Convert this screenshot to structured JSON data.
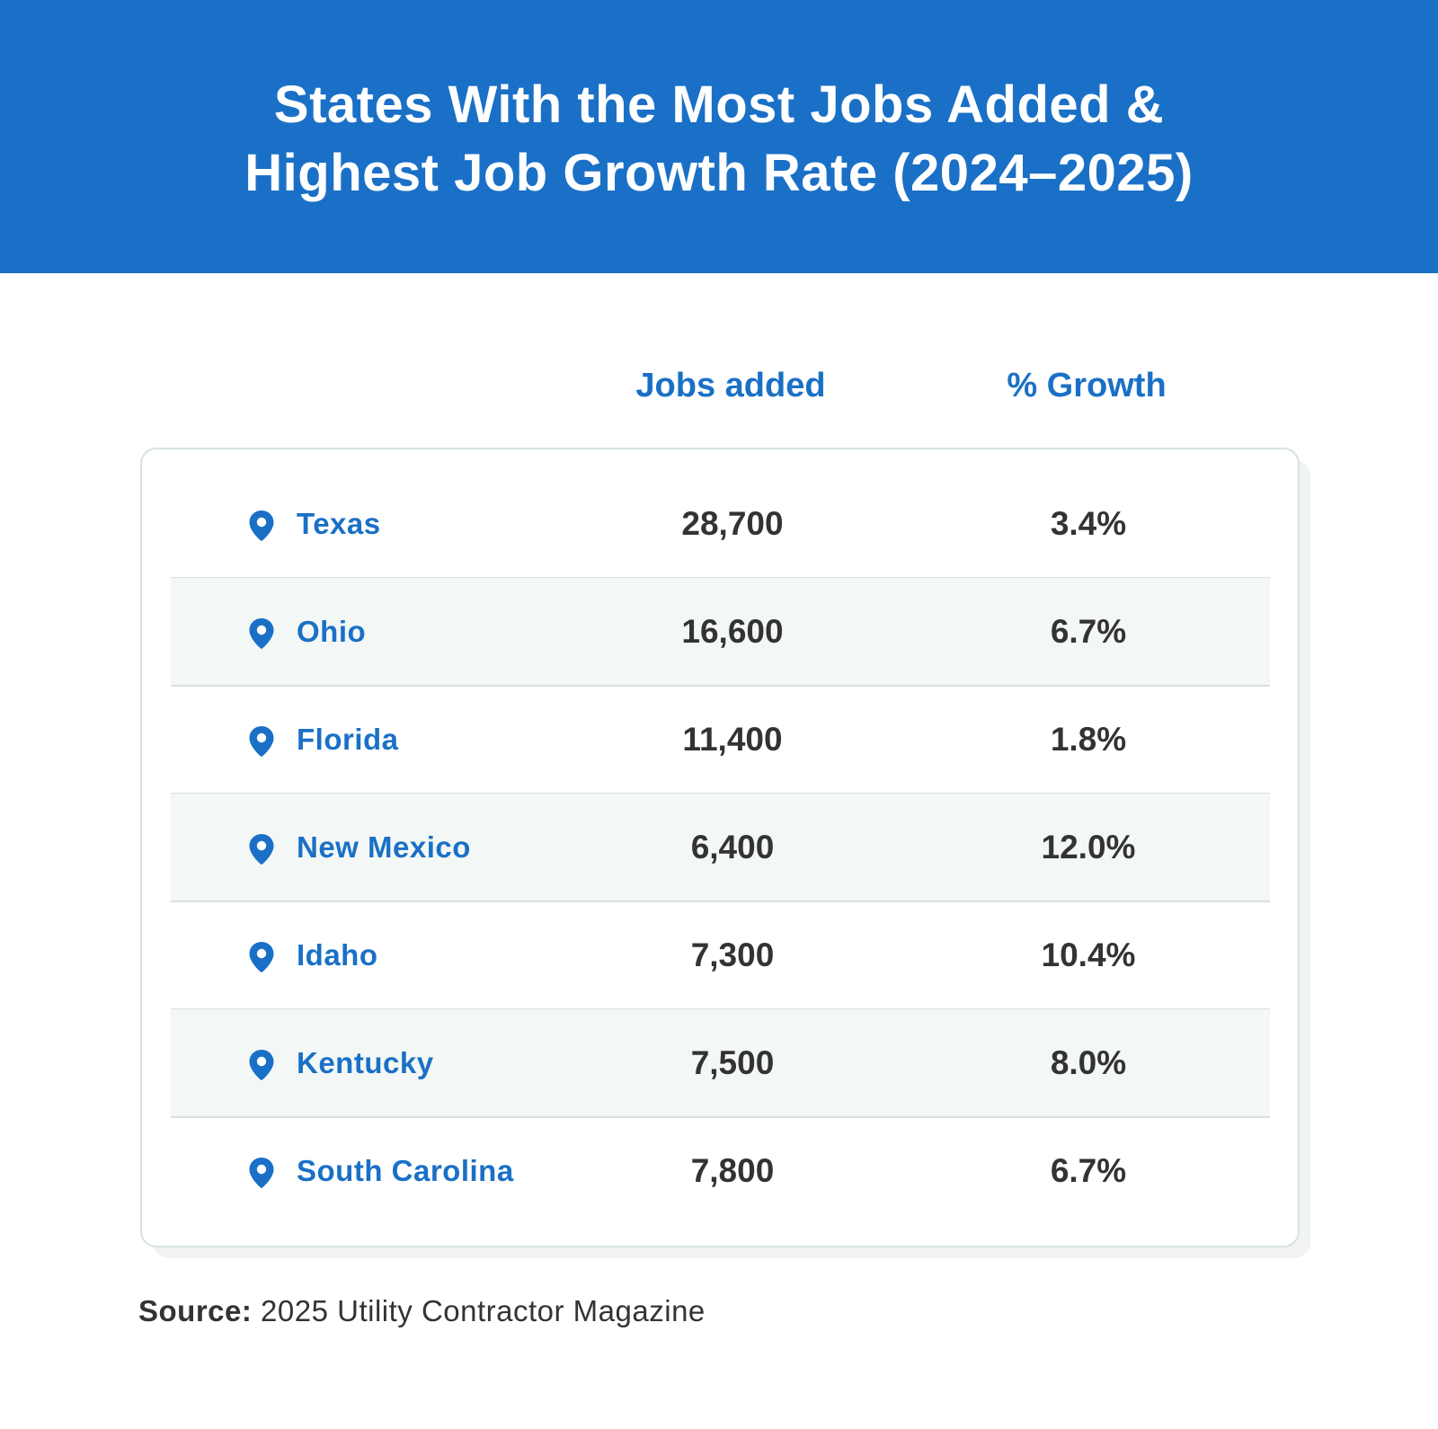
{
  "header": {
    "title_lines": [
      "States With the Most Jobs Added &",
      "Highest Job Growth Rate (2024–2025)"
    ]
  },
  "table": {
    "columns": [
      "Jobs added",
      "% Growth"
    ],
    "rows": [
      [
        "Texas",
        "28,700",
        "3.4%"
      ],
      [
        "Ohio",
        "16,600",
        "6.7%"
      ],
      [
        "Florida",
        "11,400",
        "1.8%"
      ],
      [
        "New Mexico",
        "6,400",
        "12.0%"
      ],
      [
        "Idaho",
        "7,300",
        "10.4%"
      ],
      [
        "Kentucky",
        "7,500",
        "8.0%"
      ],
      [
        "South Carolina",
        "7,800",
        "6.7%"
      ]
    ]
  },
  "source": {
    "label": "Source:",
    "text": "2025 Utility Contractor Magazine"
  }
}
